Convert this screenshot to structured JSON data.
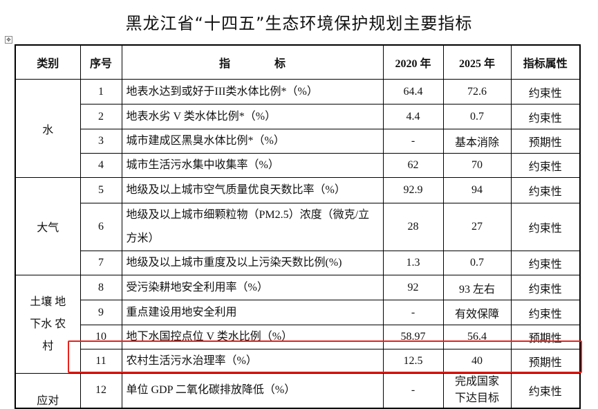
{
  "title": "黑龙江省“十四五”生态环境保护规划主要指标",
  "headers": [
    "类别",
    "序号",
    "指　　　　标",
    "2020 年",
    "2025 年",
    "指标属性"
  ],
  "groups": [
    {
      "category": "水",
      "rows": [
        {
          "no": "1",
          "indicator": "地表水达到或好于III类水体比例*（%）",
          "y2020": "64.4",
          "y2025": "72.6",
          "attr": "约束性"
        },
        {
          "no": "2",
          "indicator": "地表水劣 V 类水体比例*（%）",
          "y2020": "4.4",
          "y2025": "0.7",
          "attr": "约束性"
        },
        {
          "no": "3",
          "indicator": "城市建成区黑臭水体比例*（%）",
          "y2020": "-",
          "y2025": "基本消除",
          "attr": "预期性"
        },
        {
          "no": "4",
          "indicator": "城市生活污水集中收集率（%）",
          "y2020": "62",
          "y2025": "70",
          "attr": "约束性"
        }
      ]
    },
    {
      "category": "大气",
      "rows": [
        {
          "no": "5",
          "indicator": "地级及以上城市空气质量优良天数比率（%）",
          "y2020": "92.9",
          "y2025": "94",
          "attr": "约束性"
        },
        {
          "no": "6",
          "indicator": "地级及以上城市细颗粒物（PM2.5）浓度（微克/立方米）",
          "y2020": "28",
          "y2025": "27",
          "attr": "约束性"
        },
        {
          "no": "7",
          "indicator": "地级及以上城市重度及以上污染天数比例(%)",
          "y2020": "1.3",
          "y2025": "0.7",
          "attr": "约束性"
        }
      ]
    },
    {
      "category": "土壤 地下水 农村",
      "rows": [
        {
          "no": "8",
          "indicator": "受污染耕地安全利用率（%）",
          "y2020": "92",
          "y2025": "93 左右",
          "attr": "约束性"
        },
        {
          "no": "9",
          "indicator": "重点建设用地安全利用",
          "y2020": "-",
          "y2025": "有效保障",
          "attr": "约束性"
        },
        {
          "no": "10",
          "indicator": "地下水国控点位 V 类水比例（%）",
          "y2020": "58.97",
          "y2025": "56.4",
          "attr": "预期性"
        },
        {
          "no": "11",
          "indicator": "农村生活污水治理率（%）",
          "y2020": "12.5",
          "y2025": "40",
          "attr": "预期性"
        }
      ]
    },
    {
      "category": "应对",
      "rows": [
        {
          "no": "12",
          "indicator": "单位 GDP 二氧化碳排放降低（%）",
          "y2020": "-",
          "y2025": "完成国家下达目标",
          "attr": "约束性"
        }
      ]
    }
  ],
  "highlight_color": "#e8221b"
}
